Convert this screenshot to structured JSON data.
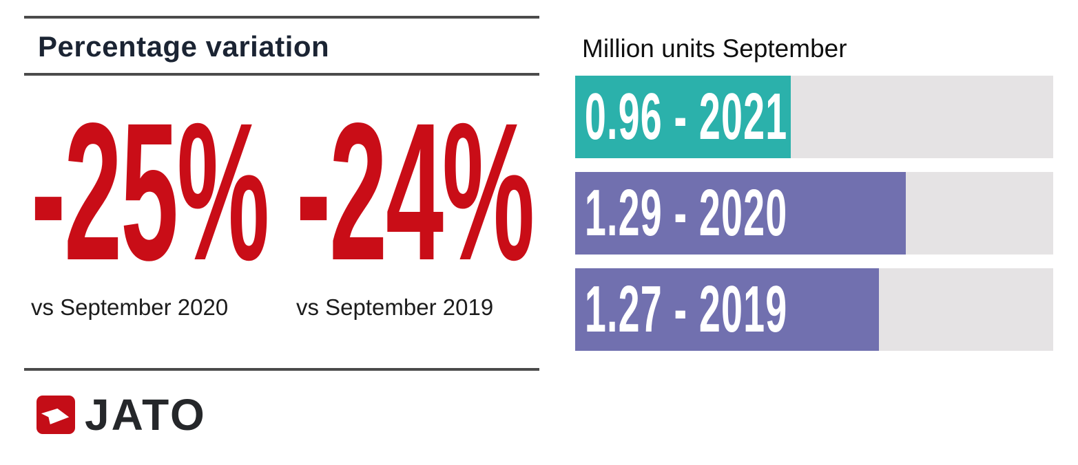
{
  "left": {
    "title": "Percentage variation",
    "stats": [
      {
        "value": "-25%",
        "label": "vs September 2020"
      },
      {
        "value": "-24%",
        "label": "vs September 2019"
      }
    ],
    "logo_text": "JATO"
  },
  "right": {
    "title": "Million units September",
    "bars": [
      {
        "label": "0.96 - 2021",
        "value": 0.96,
        "year": "2021",
        "color": "#2bb1ab",
        "width_pct": 45.1
      },
      {
        "label": "1.29 - 2020",
        "value": 1.29,
        "year": "2020",
        "color": "#7170af",
        "width_pct": 69.2
      },
      {
        "label": "1.27 - 2019",
        "value": 1.27,
        "year": "2019",
        "color": "#7170af",
        "width_pct": 63.5
      }
    ]
  },
  "colors": {
    "accent_red": "#c90d17",
    "logo_red": "#c40d17",
    "teal_bar": "#2bb1ab",
    "purple_bar": "#7170af",
    "bar_track_gray": "#e5e3e4",
    "title_navy": "#1b2433",
    "rule_gray": "#4b4b4b",
    "text_dark": "#1c1c1c"
  },
  "icons": {
    "logo_arrow": "jato-arrow-icon"
  },
  "chart_data": {
    "type": "bar",
    "orientation": "horizontal",
    "title": "Million units September",
    "categories": [
      "2021",
      "2020",
      "2019"
    ],
    "values": [
      0.96,
      1.29,
      1.27
    ],
    "unit": "million units",
    "bar_labels": [
      "0.96 - 2021",
      "1.29 - 2020",
      "1.27 - 2019"
    ],
    "bar_colors": [
      "#2bb1ab",
      "#7170af",
      "#7170af"
    ],
    "bar_width_pct_of_track": [
      45.1,
      69.2,
      63.5
    ],
    "track_color": "#e5e3e4",
    "grid": false,
    "legend": false,
    "annotations": [
      {
        "text": "-25%",
        "note": "vs September 2020"
      },
      {
        "text": "-24%",
        "note": "vs September 2019"
      }
    ],
    "section_title_left": "Percentage variation"
  }
}
